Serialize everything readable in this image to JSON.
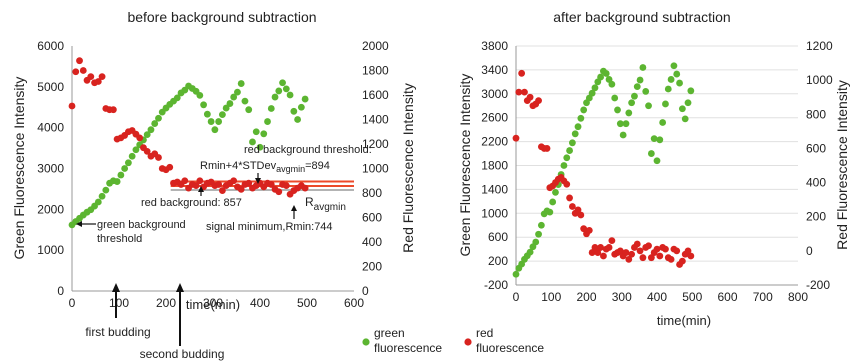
{
  "legend": {
    "green_label_line1": "green",
    "green_label_line2": "fluorescence",
    "red_label_line1": "red",
    "red_label_line2": "fluorescence"
  },
  "colors": {
    "green": "#5cb531",
    "red": "#d8231f",
    "threshold": "#ec4a2a",
    "background": "#b3b3b3"
  },
  "chart_data": [
    {
      "type": "scatter",
      "title": "before background subtraction",
      "xlabel": "time(min)",
      "ylabel": "Green Fluorescence Intensity",
      "y2label": "Red Fluorescence Intensity",
      "xlim": [
        0,
        600
      ],
      "ylim": [
        0,
        6000
      ],
      "y2lim": [
        0,
        2000
      ],
      "xticks": [
        "0",
        "100",
        "200",
        "300",
        "400",
        "500",
        "600"
      ],
      "yticks": [
        "0",
        "1000",
        "2000",
        "3000",
        "4000",
        "5000",
        "6000"
      ],
      "y2ticks": [
        "0",
        "200",
        "400",
        "600",
        "800",
        "1000",
        "1200",
        "1400",
        "1600",
        "1800",
        "2000"
      ],
      "series": [
        {
          "name": "green fluorescence",
          "axis": "left",
          "x": [
            0,
            8,
            16,
            24,
            32,
            40,
            48,
            56,
            64,
            72,
            80,
            88,
            96,
            104,
            112,
            120,
            128,
            136,
            144,
            152,
            160,
            168,
            176,
            184,
            192,
            200,
            208,
            216,
            224,
            232,
            240,
            248,
            256,
            264,
            272,
            280,
            288,
            296,
            304,
            312,
            320,
            328,
            336,
            344,
            352,
            360,
            368,
            376,
            384,
            392,
            400,
            408,
            416,
            424,
            432,
            440,
            448,
            456,
            464,
            472,
            480,
            488,
            496
          ],
          "values": [
            1620,
            1700,
            1780,
            1860,
            1930,
            1990,
            2080,
            2180,
            2320,
            2470,
            2640,
            2700,
            2680,
            2840,
            3000,
            3140,
            3300,
            3460,
            3580,
            3700,
            3830,
            3950,
            4100,
            4230,
            4380,
            4480,
            4570,
            4650,
            4730,
            4850,
            4920,
            5020,
            4960,
            4890,
            4790,
            4560,
            4330,
            4150,
            3950,
            4150,
            4320,
            4480,
            4590,
            4750,
            4870,
            5080,
            4650,
            4440,
            3650,
            3900,
            3520,
            3850,
            4150,
            4470,
            4750,
            4900,
            5100,
            4950,
            4800,
            4400,
            4200,
            4500,
            4700
          ]
        },
        {
          "name": "red fluorescence",
          "axis": "right",
          "x": [
            0,
            8,
            16,
            24,
            32,
            40,
            48,
            56,
            64,
            72,
            80,
            88,
            96,
            104,
            112,
            120,
            128,
            136,
            144,
            152,
            160,
            168,
            176,
            184,
            192,
            200,
            208,
            216,
            224,
            232,
            240,
            248,
            256,
            264,
            272,
            280,
            288,
            296,
            304,
            312,
            320,
            328,
            336,
            344,
            352,
            360,
            368,
            376,
            384,
            392,
            400,
            408,
            416,
            424,
            432,
            440,
            448,
            456,
            464,
            472,
            480,
            488,
            496
          ],
          "values": [
            1510,
            1790,
            1880,
            1800,
            1720,
            1750,
            1700,
            1710,
            1750,
            1490,
            1480,
            1480,
            1240,
            1250,
            1270,
            1300,
            1310,
            1280,
            1250,
            1170,
            1140,
            1100,
            1120,
            1090,
            1000,
            990,
            1010,
            880,
            890,
            870,
            900,
            840,
            870,
            860,
            900,
            850,
            880,
            890,
            860,
            870,
            820,
            860,
            880,
            900,
            850,
            830,
            870,
            880,
            840,
            860,
            880,
            850,
            880,
            870,
            830,
            810,
            870,
            860,
            790,
            820,
            840,
            860,
            840
          ]
        }
      ],
      "annotations": {
        "green_threshold": "green background threshold",
        "red_threshold": "red background threshold:",
        "red_threshold_formula_a": "Rmin+4*STDev",
        "red_threshold_formula_sub": "avgmin",
        "red_threshold_formula_b": "=894",
        "red_background": "red background: 857",
        "r_label": "R",
        "r_sub": "avgmin",
        "signal_minimum": "signal minimum,Rmin:744",
        "first_budding": "first budding",
        "second_budding": "second budding"
      },
      "lines": {
        "red_threshold": 894,
        "red_background": 857,
        "red_avgmin": 825
      },
      "events": {
        "first_budding": 90,
        "second_budding": 218
      }
    },
    {
      "type": "scatter",
      "title": "after background subtraction",
      "xlabel": "time(min)",
      "ylabel": "Green Fluorescence Intensity",
      "y2label": "Red Fluorescence Intensity",
      "xlim": [
        0,
        800
      ],
      "ylim": [
        -200,
        3800
      ],
      "y2lim": [
        -200,
        1200
      ],
      "xticks": [
        "0",
        "100",
        "200",
        "300",
        "400",
        "500",
        "600",
        "700",
        "800"
      ],
      "yticks": [
        "-200",
        "200",
        "600",
        "1000",
        "1400",
        "1800",
        "2200",
        "2600",
        "3000",
        "3400",
        "3800"
      ],
      "y2ticks": [
        "-200",
        "0",
        "200",
        "400",
        "600",
        "800",
        "1000",
        "1200"
      ],
      "series": [
        {
          "name": "green fluorescence",
          "axis": "left",
          "x": [
            0,
            8,
            16,
            24,
            32,
            40,
            48,
            56,
            64,
            72,
            80,
            88,
            96,
            104,
            112,
            120,
            128,
            136,
            144,
            152,
            160,
            168,
            176,
            184,
            192,
            200,
            208,
            216,
            224,
            232,
            240,
            248,
            256,
            264,
            272,
            280,
            288,
            296,
            304,
            312,
            320,
            328,
            336,
            344,
            352,
            360,
            368,
            376,
            384,
            392,
            400,
            408,
            416,
            424,
            432,
            440,
            448,
            456,
            464,
            472,
            480,
            488,
            496
          ],
          "values": [
            -20,
            80,
            150,
            230,
            290,
            350,
            440,
            520,
            650,
            800,
            990,
            1040,
            1020,
            1190,
            1350,
            1480,
            1650,
            1800,
            1930,
            2050,
            2180,
            2330,
            2450,
            2590,
            2730,
            2850,
            2930,
            3010,
            3100,
            3200,
            3280,
            3380,
            3340,
            3240,
            3160,
            2930,
            2730,
            2500,
            2310,
            2500,
            2680,
            2850,
            2960,
            3120,
            3230,
            3440,
            3040,
            2800,
            2000,
            2250,
            1880,
            2230,
            2520,
            2830,
            3080,
            3240,
            3470,
            3330,
            3180,
            2750,
            2580,
            2850,
            3050
          ]
        },
        {
          "name": "red fluorescence",
          "axis": "right",
          "x": [
            0,
            8,
            16,
            24,
            32,
            40,
            48,
            56,
            64,
            72,
            80,
            88,
            96,
            104,
            112,
            120,
            128,
            136,
            144,
            152,
            160,
            168,
            176,
            184,
            192,
            200,
            208,
            216,
            224,
            232,
            240,
            248,
            256,
            264,
            272,
            280,
            288,
            296,
            304,
            312,
            320,
            328,
            336,
            344,
            352,
            360,
            368,
            376,
            384,
            392,
            400,
            408,
            416,
            424,
            432,
            440,
            448,
            456,
            464,
            472,
            480,
            488,
            496
          ],
          "values": [
            660,
            930,
            1040,
            930,
            880,
            900,
            850,
            860,
            880,
            610,
            600,
            600,
            370,
            380,
            400,
            420,
            430,
            410,
            390,
            310,
            260,
            220,
            240,
            210,
            130,
            100,
            120,
            -10,
            20,
            -10,
            20,
            -30,
            10,
            20,
            60,
            -20,
            -10,
            0,
            -30,
            -10,
            -50,
            -20,
            20,
            40,
            0,
            -40,
            20,
            30,
            -40,
            -10,
            10,
            -30,
            20,
            10,
            -40,
            -50,
            10,
            0,
            -80,
            -60,
            -20,
            0,
            -30
          ]
        }
      ]
    }
  ]
}
